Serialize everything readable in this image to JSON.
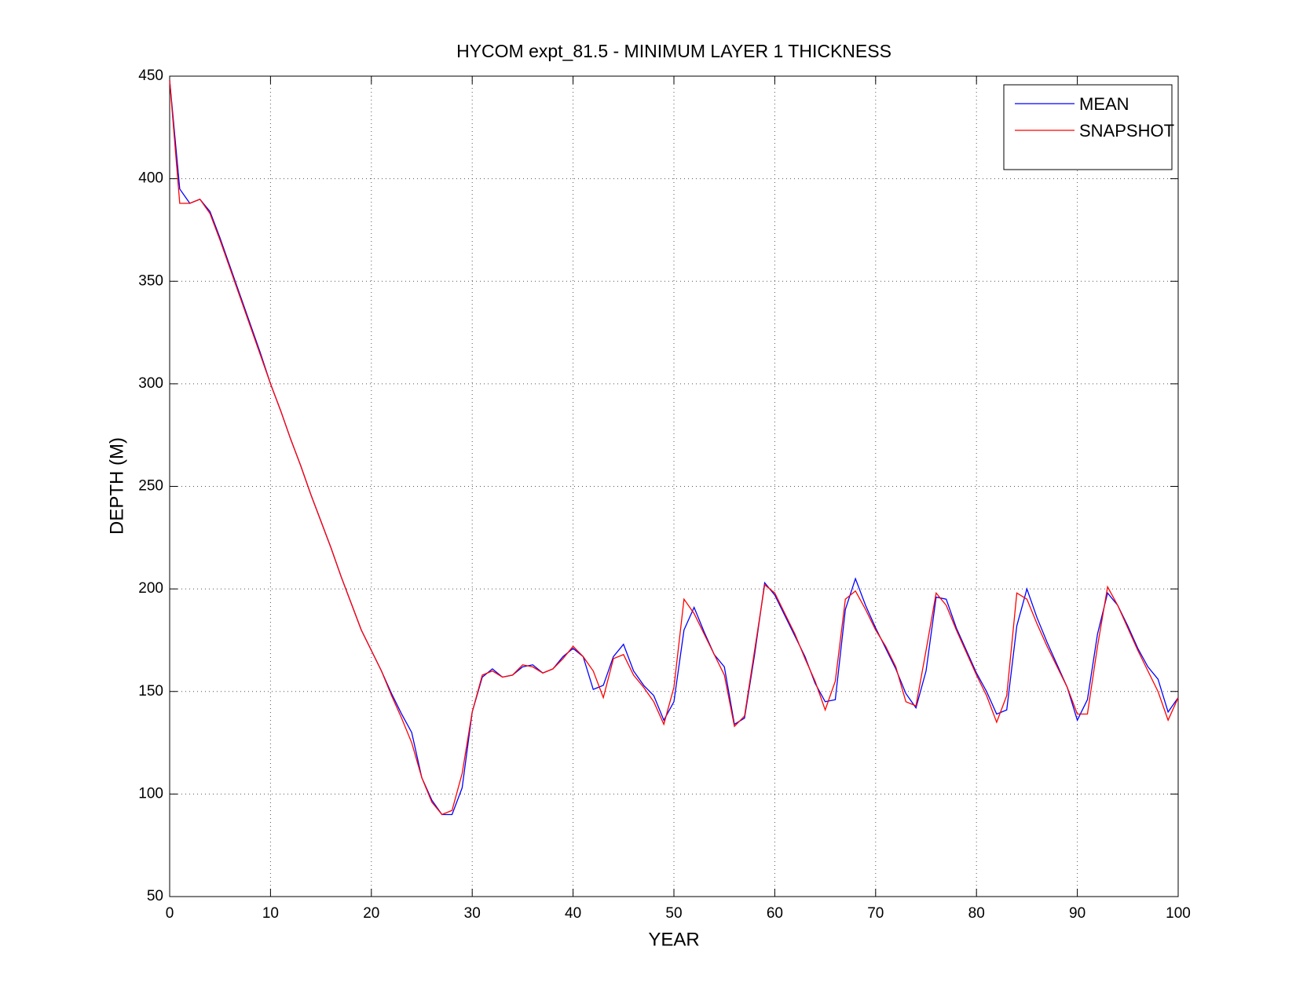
{
  "chart_data": {
    "type": "line",
    "title": "HYCOM expt_81.5 - MINIMUM LAYER 1 THICKNESS",
    "x_label": "YEAR",
    "y_label": "DEPTH (M)",
    "x": [
      0,
      1,
      2,
      3,
      4,
      5,
      6,
      7,
      8,
      9,
      10,
      11,
      12,
      13,
      14,
      15,
      16,
      17,
      18,
      19,
      20,
      21,
      22,
      23,
      24,
      25,
      26,
      27,
      28,
      29,
      30,
      31,
      32,
      33,
      34,
      35,
      36,
      37,
      38,
      39,
      40,
      41,
      42,
      43,
      44,
      45,
      46,
      47,
      48,
      49,
      50,
      51,
      52,
      53,
      54,
      55,
      56,
      57,
      58,
      59,
      60,
      61,
      62,
      63,
      64,
      65,
      66,
      67,
      68,
      69,
      70,
      71,
      72,
      73,
      74,
      75,
      76,
      77,
      78,
      79,
      80,
      81,
      82,
      83,
      84,
      85,
      86,
      87,
      88,
      89,
      90,
      91,
      92,
      93,
      94,
      95,
      96,
      97,
      98,
      99,
      100
    ],
    "series": [
      {
        "name": "MEAN",
        "color": "#0000ff",
        "values": [
          448,
          395,
          388,
          390,
          384,
          371,
          357,
          343,
          329,
          315,
          300,
          287,
          273,
          260,
          246,
          233,
          220,
          206,
          193,
          180,
          170,
          160,
          149,
          139,
          130,
          108,
          97,
          90,
          90,
          103,
          140,
          157,
          161,
          157,
          158,
          162,
          163,
          159,
          161,
          167,
          171,
          167,
          151,
          153,
          167,
          173,
          160,
          153,
          148,
          136,
          145,
          180,
          191,
          179,
          168,
          162,
          134,
          137,
          168,
          203,
          197,
          187,
          177,
          167,
          154,
          145,
          146,
          190,
          205,
          192,
          181,
          171,
          161,
          149,
          142,
          160,
          196,
          195,
          181,
          170,
          159,
          150,
          139,
          141,
          182,
          200,
          186,
          174,
          163,
          152,
          136,
          146,
          178,
          198,
          192,
          182,
          171,
          162,
          156,
          140,
          147
        ]
      },
      {
        "name": "SNAPSHOT",
        "color": "#ff0000",
        "values": [
          448,
          388,
          388,
          390,
          383,
          370,
          356,
          342,
          328,
          314,
          300,
          287,
          273,
          260,
          246,
          233,
          220,
          206,
          193,
          180,
          170,
          160,
          148,
          137,
          125,
          108,
          96,
          90,
          92,
          110,
          140,
          158,
          160,
          157,
          158,
          163,
          162,
          159,
          161,
          166,
          172,
          167,
          160,
          147,
          166,
          168,
          158,
          152,
          145,
          134,
          152,
          195,
          188,
          178,
          168,
          158,
          133,
          138,
          170,
          202,
          198,
          188,
          178,
          166,
          155,
          141,
          155,
          195,
          199,
          190,
          180,
          172,
          162,
          145,
          143,
          170,
          198,
          192,
          180,
          169,
          158,
          148,
          135,
          148,
          198,
          195,
          183,
          172,
          162,
          152,
          139,
          139,
          172,
          201,
          192,
          181,
          170,
          160,
          150,
          136,
          147
        ]
      }
    ],
    "xlim": [
      0,
      100
    ],
    "xticks": [
      0,
      10,
      20,
      30,
      40,
      50,
      60,
      70,
      80,
      90,
      100
    ],
    "ylim": [
      50,
      450
    ],
    "yticks": [
      50,
      100,
      150,
      200,
      250,
      300,
      350,
      400,
      450
    ],
    "grid": true,
    "legend": "upper right"
  }
}
